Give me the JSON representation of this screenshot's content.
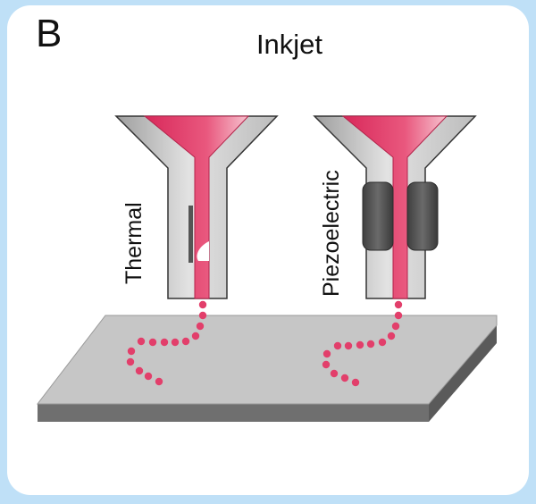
{
  "figure": {
    "panel_letter": "B",
    "title": "Inkjet"
  },
  "nozzles": [
    {
      "label": "Thermal",
      "actuator": "heater-bubble"
    },
    {
      "label": "Piezoelectric",
      "actuator": "piezo-elements"
    }
  ],
  "colors": {
    "background": "#bfe0f7",
    "ink": "#e23f6b",
    "nozzle_body": "#c9c9c9",
    "piezo": "#555555",
    "substrate_top": "#c6c6c6",
    "substrate_side": "#6f6f6f"
  }
}
